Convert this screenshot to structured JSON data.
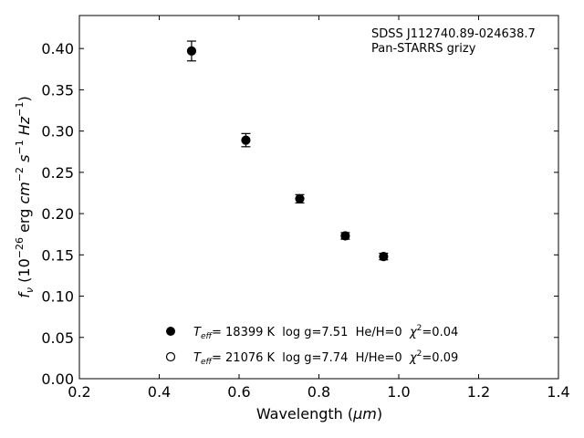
{
  "chart_data": {
    "type": "scatter",
    "xlabel_prefix": "Wavelength (",
    "xlabel_unit": "μm",
    "xlabel_suffix": ")",
    "ylabel": "f_ν (10^−26 erg cm^−2 s^−1 Hz^−1)",
    "xlim": [
      0.2,
      1.4
    ],
    "ylim": [
      0.0,
      0.44
    ],
    "x_ticks": [
      0.2,
      0.4,
      0.6,
      0.8,
      1.0,
      1.2,
      1.4
    ],
    "x_tick_labels": [
      "0.2",
      "0.4",
      "0.6",
      "0.8",
      "1.0",
      "1.2",
      "1.4"
    ],
    "y_ticks": [
      0.0,
      0.05,
      0.1,
      0.15,
      0.2,
      0.25,
      0.3,
      0.35,
      0.4
    ],
    "y_tick_labels": [
      "0.00",
      "0.05",
      "0.10",
      "0.15",
      "0.20",
      "0.25",
      "0.30",
      "0.35",
      "0.40"
    ],
    "grid": false,
    "annotation_lines": [
      "SDSS J112740.89-024638.7",
      "Pan-STARRS grizy"
    ],
    "series": [
      {
        "marker": "filled-circle",
        "legend": "T_eff= 18399 K  log g=7.51  He/H=0  χ²=0.04",
        "points": [
          {
            "x": 0.481,
            "y": 0.397,
            "err": 0.012
          },
          {
            "x": 0.617,
            "y": 0.289,
            "err": 0.008
          },
          {
            "x": 0.752,
            "y": 0.218,
            "err": 0.005
          },
          {
            "x": 0.866,
            "y": 0.173,
            "err": 0.004
          },
          {
            "x": 0.962,
            "y": 0.148,
            "err": 0.004
          }
        ]
      },
      {
        "marker": "open-circle",
        "legend": "T_eff= 21076 K  log g=7.74  H/He=0  χ²=0.09",
        "points": []
      }
    ],
    "legend_placement": "lower-center",
    "legend_items": [
      {
        "pre": "T",
        "sub": "eff",
        "mid": "= 18399 K  log g=7.51  He/H=0  ",
        "chi": "χ",
        "sup": "2",
        "post": "=0.04"
      },
      {
        "pre": "T",
        "sub": "eff",
        "mid": "= 21076 K  log g=7.74  H/He=0  ",
        "chi": "χ",
        "sup": "2",
        "post": "=0.09"
      }
    ]
  }
}
